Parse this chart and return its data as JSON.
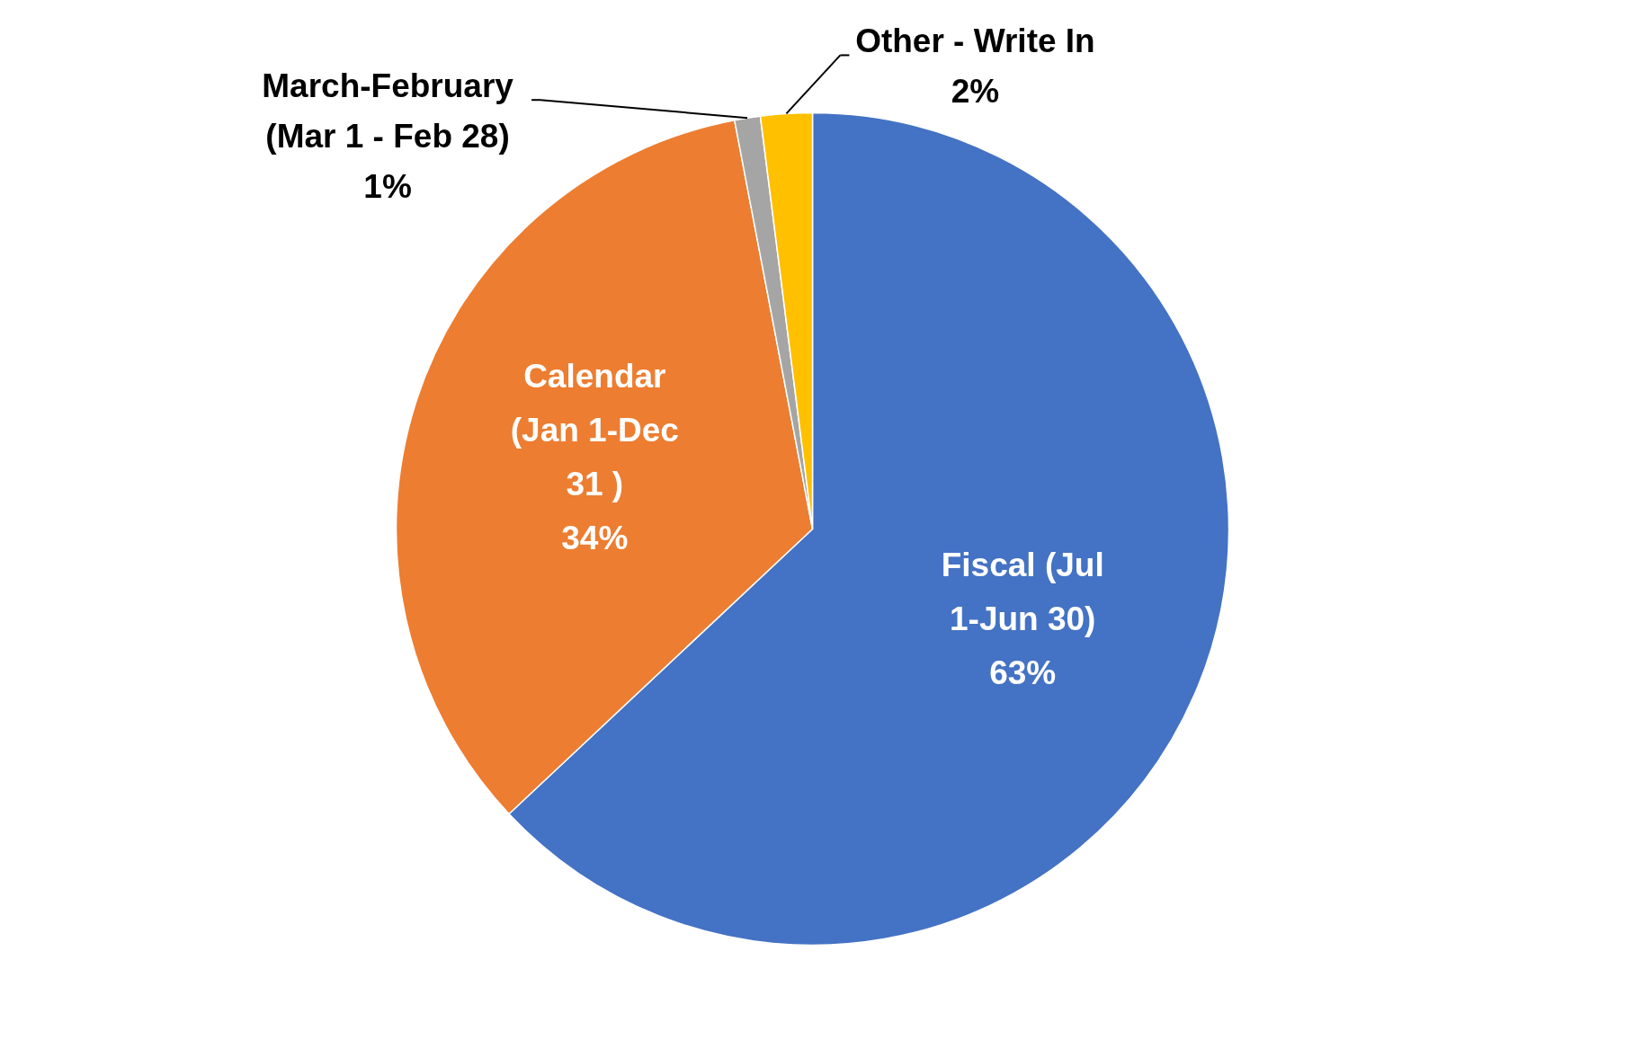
{
  "chart_data": {
    "type": "pie",
    "categories": [
      "Fiscal (Jul 1-Jun 30)",
      "Calendar (Jan 1-Dec 31 )",
      "March-February (Mar 1 - Feb 28)",
      "Other - Write In"
    ],
    "values": [
      63,
      34,
      1,
      2
    ],
    "colors": [
      "#4472c4",
      "#ed7d31",
      "#a5a5a5",
      "#ffc000"
    ],
    "value_labels": [
      "63%",
      "34%",
      "1%",
      "2%"
    ]
  }
}
